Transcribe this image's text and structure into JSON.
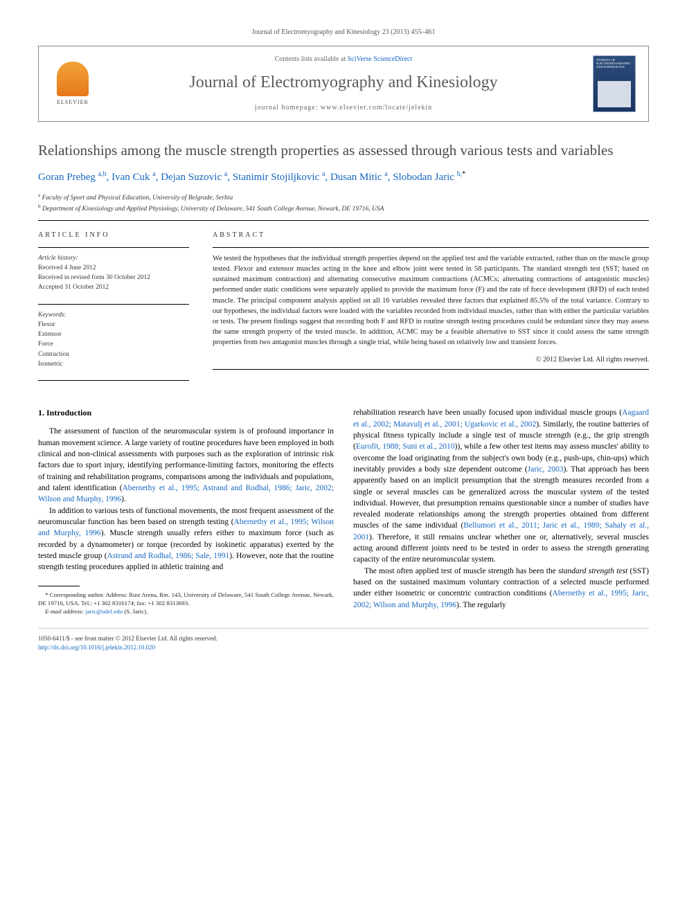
{
  "journal_ref": "Journal of Electromyography and Kinesiology 23 (2013) 455–461",
  "header": {
    "contents_prefix": "Contents lists available at ",
    "contents_link": "SciVerse ScienceDirect",
    "journal_name": "Journal of Electromyography and Kinesiology",
    "homepage_prefix": "journal homepage: ",
    "homepage_url": "www.elsevier.com/locate/jelekin",
    "publisher_logo_label": "ELSEVIER",
    "cover_label": "JOURNAL OF ELECTROMYOGRAPHY AND KINESIOLOGY"
  },
  "title": "Relationships among the muscle strength properties as assessed through various tests and variables",
  "authors_html": "Goran Prebeg <sup>a,b</sup>, Ivan Cuk <sup>a</sup>, Dejan Suzovic <sup>a</sup>, Stanimir Stojiljkovic <sup>a</sup>, Dusan Mitic <sup>a</sup>, Slobodan Jaric <sup>b,*</sup>",
  "affiliations": [
    {
      "sup": "a",
      "text": "Faculty of Sport and Physical Education, University of Belgrade, Serbia"
    },
    {
      "sup": "b",
      "text": "Department of Kinesiology and Applied Physiology, University of Delaware, 541 South College Avenue, Newark, DE 19716, USA"
    }
  ],
  "article_info": {
    "heading": "ARTICLE INFO",
    "history_label": "Article history:",
    "received": "Received 4 June 2012",
    "revised": "Received in revised form 30 October 2012",
    "accepted": "Accepted 31 October 2012",
    "keywords_label": "Keywords:",
    "keywords": [
      "Flexor",
      "Extensor",
      "Force",
      "Contraction",
      "Isometric"
    ]
  },
  "abstract": {
    "heading": "ABSTRACT",
    "text": "We tested the hypotheses that the individual strength properties depend on the applied test and the variable extracted, rather than on the muscle group tested. Flexor and extensor muscles acting in the knee and elbow joint were tested in 58 participants. The standard strength test (SST; based on sustained maximum contraction) and alternating consecutive maximum contractions (ACMCs; alternating contractions of antagonistic muscles) performed under static conditions were separately applied to provide the maximum force (F) and the rate of force development (RFD) of each tested muscle. The principal component analysis applied on all 16 variables revealed three factors that explained 85.5% of the total variance. Contrary to our hypotheses, the individual factors were loaded with the variables recorded from individual muscles, rather than with either the particular variables or tests. The present findings suggest that recording both F and RFD in routine strength testing procedures could be redundant since they may assess the same strength property of the tested muscle. In addition, ACMC may be a feasible alternative to SST since it could assess the same strength properties from two antagonist muscles through a single trial, while being based on relatively low and transient forces.",
    "copyright": "© 2012 Elsevier Ltd. All rights reserved."
  },
  "body": {
    "section_number": "1.",
    "section_title": "Introduction",
    "left_paragraphs": [
      "The assessment of function of the neuromuscular system is of profound importance in human movement science. A large variety of routine procedures have been employed in both clinical and non-clinical assessments with purposes such as the exploration of intrinsic risk factors due to sport injury, identifying performance-limiting factors, monitoring the effects of training and rehabilitation programs, comparisons among the individuals and populations, and talent identification (<span class=\"link\">Abernethy et al., 1995; Astrand and Rodhal, 1986; Jaric, 2002; Wilson and Murphy, 1996</span>).",
      "In addition to various tests of functional movements, the most frequent assessment of the neuromuscular function has been based on strength testing (<span class=\"link\">Abernethy et al., 1995; Wilson and Murphy, 1996</span>). Muscle strength usually refers either to maximum force (such as recorded by a dynamometer) or torque (recorded by isokinetic apparatus) exerted by the tested muscle group (<span class=\"link\">Astrand and Rodhal, 1986; Sale, 1991</span>). However, note that the routine strength testing procedures applied in athletic training and"
    ],
    "right_paragraphs": [
      "rehabilitation research have been usually focused upon individual muscle groups (<span class=\"link\">Aagaard et al., 2002; Matavulj et al., 2001; Ugarkovic et al., 2002</span>). Similarly, the routine batteries of physical fitness typically include a single test of muscle strength (e.g., the grip strength (<span class=\"link\">Eurofit, 1988; Suni et al., 2010</span>)), while a few other test items may assess muscles' ability to overcome the load originating from the subject's own body (e.g., push-ups, chin-ups) which inevitably provides a body size dependent outcome (<span class=\"link\">Jaric, 2003</span>). That approach has been apparently based on an implicit presumption that the strength measures recorded from a single or several muscles can be generalized across the muscular system of the tested individual. However, that presumption remains questionable since a number of studies have revealed moderate relationships among the strength properties obtained from different muscles of the same individual (<span class=\"link\">Bellumori et al., 2011; Jaric et al., 1989; Sahaly et al., 2001</span>). Therefore, it still remains unclear whether one or, alternatively, several muscles acting around different joints need to be tested in order to assess the strength generating capacity of the entire neuromuscular system.",
      "The most often applied test of muscle strength has been the <em>standard strength test</em> (SST) based on the sustained maximum voluntary contraction of a selected muscle performed under either isometric or concentric contraction conditions (<span class=\"link\">Abernethy et al., 1995; Jaric, 2002; Wilson and Murphy, 1996</span>). The regularly"
    ]
  },
  "footnote": {
    "corresponding": "* Corresponding author. Address: Rust Arena, Rm. 143, University of Delaware, 541 South College Avenue, Newark, DE 19716, USA. Tel.: +1 302 8316174; fax: +1 302 8313693.",
    "email_label": "E-mail address:",
    "email": "jaric@udel.edu",
    "email_owner": "(S. Jaric)."
  },
  "bottom": {
    "issn_line": "1050-6411/$ - see front matter © 2012 Elsevier Ltd. All rights reserved.",
    "doi": "http://dx.doi.org/10.1016/j.jelekin.2012.10.020"
  },
  "colors": {
    "link": "#1566c0",
    "title_gray": "#4a4a4a",
    "header_gray": "#5a5a5a",
    "elsevier_orange": "#e67819",
    "cover_blue": "#1a3560"
  }
}
